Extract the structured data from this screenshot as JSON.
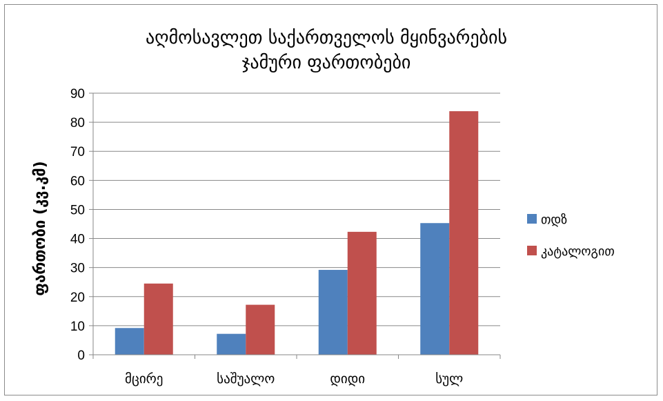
{
  "chart_data": {
    "type": "bar",
    "title_lines": [
      "აღმოსავლეთ საქართველოს მყინვარების",
      "ჯამური ფართობები"
    ],
    "ylabel": "ფართობი (კვ.კმ)",
    "xlabel": "",
    "categories": [
      "მცირე",
      "საშუალო",
      "დიდი",
      "სულ"
    ],
    "series": [
      {
        "name": "თდზ",
        "color": "#4F81BD",
        "values": [
          9.2,
          7.2,
          29.2,
          45.3
        ]
      },
      {
        "name": "კატალოგით",
        "color": "#C0504D",
        "values": [
          24.5,
          17.2,
          42.3,
          83.8
        ]
      }
    ],
    "ylim": [
      0,
      90
    ],
    "yticks": [
      0,
      10,
      20,
      30,
      40,
      50,
      60,
      70,
      80,
      90
    ],
    "grid": true,
    "legend_position": "right"
  }
}
